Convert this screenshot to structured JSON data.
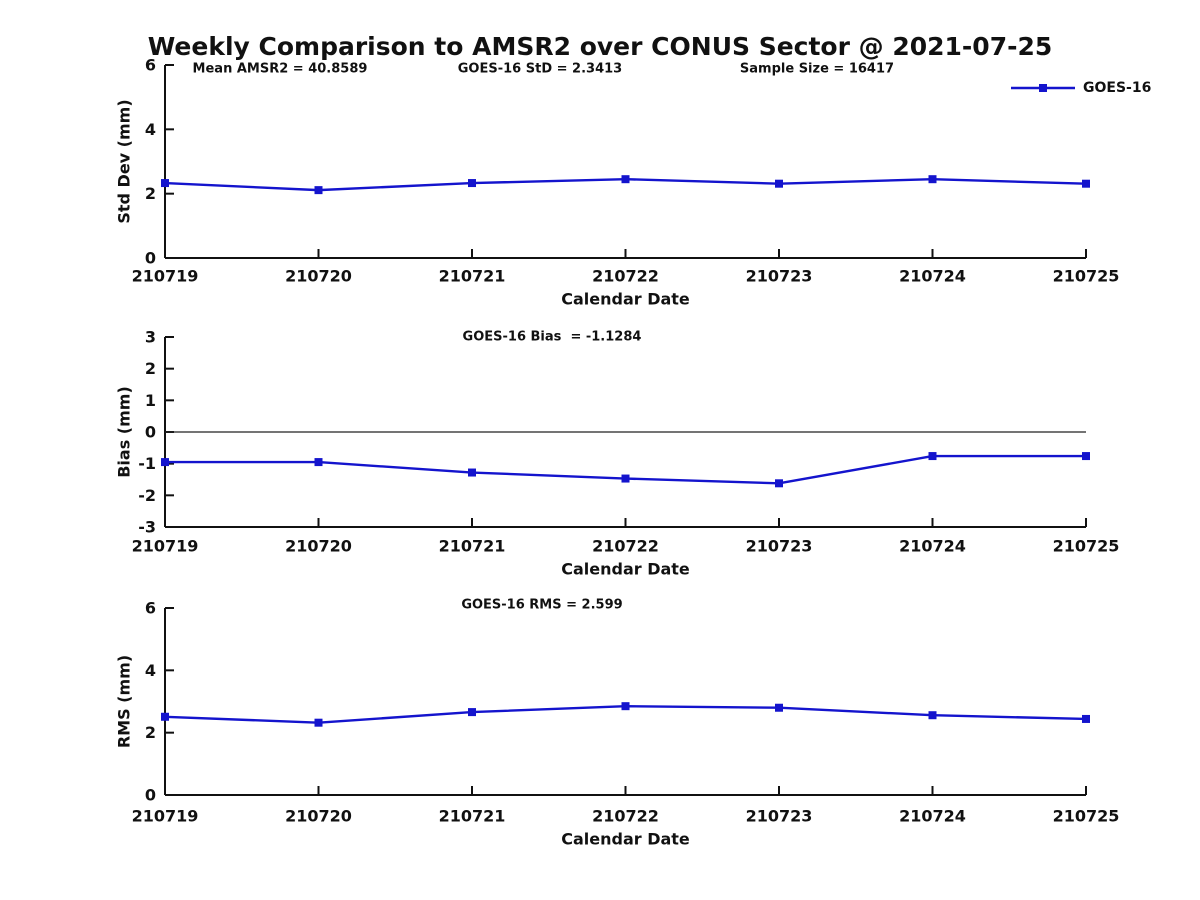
{
  "title": "Weekly Comparison to AMSR2 over CONUS Sector @ 2021-07-25",
  "legend": {
    "label": "GOES-16"
  },
  "colors": {
    "series": "#1414cd",
    "axis": "#111111",
    "zero_line": "#222222"
  },
  "chart_data": [
    {
      "type": "line",
      "name": "std-dev",
      "categories": [
        "210719",
        "210720",
        "210721",
        "210722",
        "210723",
        "210724",
        "210725"
      ],
      "series": [
        {
          "name": "GOES-16",
          "values": [
            2.33,
            2.11,
            2.33,
            2.45,
            2.31,
            2.45,
            2.31
          ]
        }
      ],
      "ylabel": "Std Dev (mm)",
      "xlabel": "Calendar Date",
      "ylim": [
        0,
        6
      ],
      "yticks": [
        0,
        2,
        4,
        6
      ],
      "grid": false,
      "zero_line": false,
      "legend_position": "top-right",
      "annotations": [
        "Mean AMSR2 = 40.8589",
        "GOES-16 StD = 2.3413",
        "Sample Size = 16417"
      ]
    },
    {
      "type": "line",
      "name": "bias",
      "categories": [
        "210719",
        "210720",
        "210721",
        "210722",
        "210723",
        "210724",
        "210725"
      ],
      "series": [
        {
          "name": "GOES-16",
          "values": [
            -0.95,
            -0.95,
            -1.28,
            -1.47,
            -1.62,
            -0.76,
            -0.76
          ]
        }
      ],
      "ylabel": "Bias (mm)",
      "xlabel": "Calendar Date",
      "ylim": [
        -3,
        3
      ],
      "yticks": [
        -3,
        -2,
        -1,
        0,
        1,
        2,
        3
      ],
      "grid": false,
      "zero_line": true,
      "annotations": [
        "GOES-16 Bias  = -1.1284"
      ]
    },
    {
      "type": "line",
      "name": "rms",
      "categories": [
        "210719",
        "210720",
        "210721",
        "210722",
        "210723",
        "210724",
        "210725"
      ],
      "series": [
        {
          "name": "GOES-16",
          "values": [
            2.51,
            2.32,
            2.66,
            2.85,
            2.8,
            2.56,
            2.44
          ]
        }
      ],
      "ylabel": "RMS (mm)",
      "xlabel": "Calendar Date",
      "ylim": [
        0,
        6
      ],
      "yticks": [
        0,
        2,
        4,
        6
      ],
      "grid": false,
      "zero_line": false,
      "annotations": [
        "GOES-16 RMS = 2.599"
      ]
    }
  ]
}
